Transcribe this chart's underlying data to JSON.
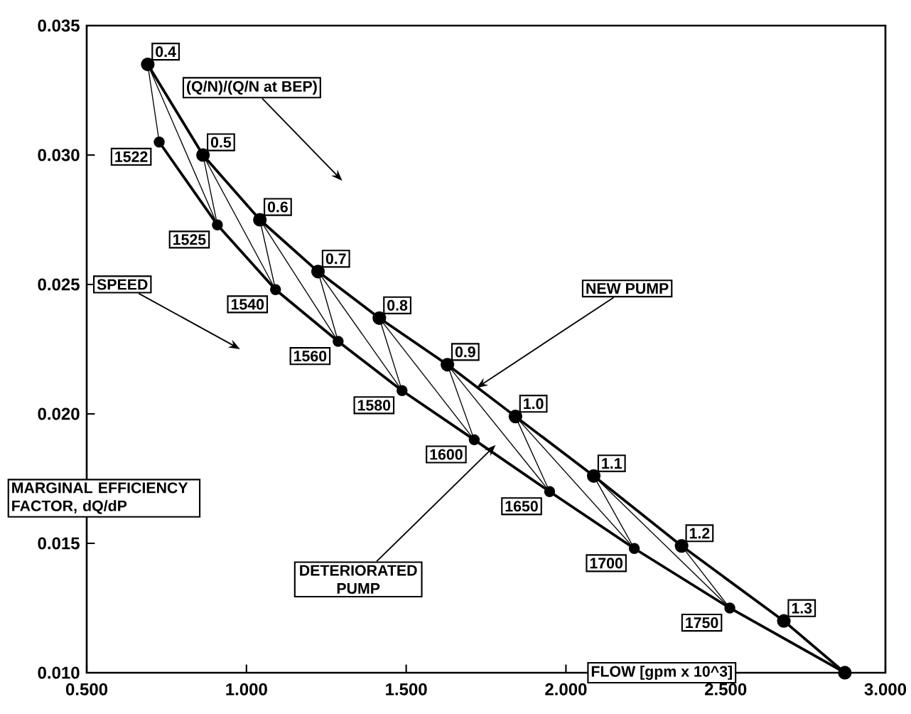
{
  "chart_data": {
    "type": "line",
    "xlabel": "FLOW [gpm x 10^3]",
    "ylabel": "MARGINAL EFFICIENCY FACTOR, dQ/dP",
    "xlim": [
      0.5,
      3.0
    ],
    "ylim": [
      0.01,
      0.035
    ],
    "xticks": [
      {
        "value": 0.5,
        "label": "0.500"
      },
      {
        "value": 1.0,
        "label": "1.000"
      },
      {
        "value": 1.5,
        "label": "1.500"
      },
      {
        "value": 2.0,
        "label": "2.000"
      },
      {
        "value": 2.5,
        "label": "2.500"
      },
      {
        "value": 3.0,
        "label": "3.000"
      }
    ],
    "yticks": [
      {
        "value": 0.01,
        "label": "0.010"
      },
      {
        "value": 0.015,
        "label": "0.015"
      },
      {
        "value": 0.02,
        "label": "0.020"
      },
      {
        "value": 0.025,
        "label": "0.025"
      },
      {
        "value": 0.03,
        "label": "0.030"
      },
      {
        "value": 0.035,
        "label": "0.035"
      }
    ],
    "marker": "circle",
    "grid": false,
    "series": [
      {
        "color": "#000000",
        "x": [
          0.691,
          0.864,
          1.042,
          1.224,
          1.416,
          1.629,
          1.842,
          2.087,
          2.362,
          2.682,
          2.873
        ],
        "values": [
          0.0335,
          0.03,
          0.0275,
          0.0255,
          0.0237,
          0.0219,
          0.0199,
          0.0176,
          0.0149,
          0.012,
          0.01
        ]
      },
      {
        "color": "#000000",
        "x": [
          0.727,
          0.909,
          1.091,
          1.287,
          1.487,
          1.713,
          1.949,
          2.214,
          2.513,
          2.873
        ],
        "values": [
          0.0305,
          0.0273,
          0.0248,
          0.0228,
          0.0209,
          0.019,
          0.017,
          0.0148,
          0.0125,
          0.01
        ]
      }
    ],
    "annotations": [
      {
        "text": "0.4",
        "x": 0.691,
        "y": 0.0335
      },
      {
        "text": "0.5",
        "x": 0.864,
        "y": 0.03
      },
      {
        "text": "0.6",
        "x": 1.042,
        "y": 0.0275
      },
      {
        "text": "0.7",
        "x": 1.224,
        "y": 0.0255
      },
      {
        "text": "0.8",
        "x": 1.416,
        "y": 0.0237
      },
      {
        "text": "0.9",
        "x": 1.629,
        "y": 0.0219
      },
      {
        "text": "1.0",
        "x": 1.842,
        "y": 0.0199
      },
      {
        "text": "1.1",
        "x": 2.087,
        "y": 0.0176
      },
      {
        "text": "1.2",
        "x": 2.362,
        "y": 0.0149
      },
      {
        "text": "1.3",
        "x": 2.682,
        "y": 0.012
      },
      {
        "text": "1522",
        "x": 0.727,
        "y": 0.0305
      },
      {
        "text": "1525",
        "x": 0.909,
        "y": 0.0273
      },
      {
        "text": "1540",
        "x": 1.091,
        "y": 0.0248
      },
      {
        "text": "1560",
        "x": 1.287,
        "y": 0.0228
      },
      {
        "text": "1580",
        "x": 1.487,
        "y": 0.0209
      },
      {
        "text": "1600",
        "x": 1.713,
        "y": 0.019
      },
      {
        "text": "1650",
        "x": 1.949,
        "y": 0.017
      },
      {
        "text": "1700",
        "x": 2.214,
        "y": 0.0148
      },
      {
        "text": "1750",
        "x": 2.513,
        "y": 0.0125
      },
      "(Q/N)/(Q/N at BEP)",
      "SPEED",
      {
        "text": "NEW PUMP",
        "x": 1.72,
        "y": 0.021
      },
      {
        "text": "DETERIORATED PUMP",
        "x": 1.78,
        "y": 0.0188
      }
    ]
  }
}
